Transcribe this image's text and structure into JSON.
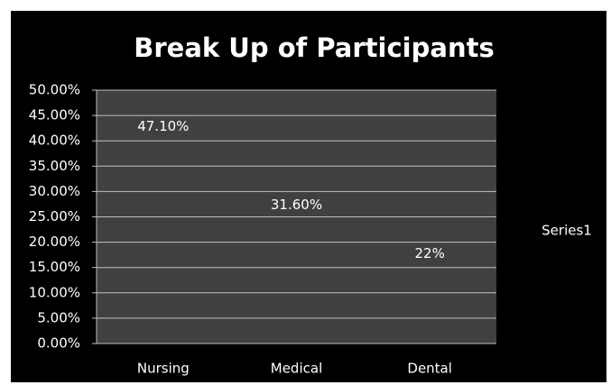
{
  "chart_data": {
    "type": "bar",
    "title": "Break Up of Participants",
    "categories": [
      "Nursing",
      "Medical",
      "Dental"
    ],
    "series": [
      {
        "name": "Series1",
        "color": "#404040",
        "values": [
          47.1,
          31.6,
          22
        ],
        "value_labels": [
          "47.10%",
          "31.60%",
          "22%"
        ]
      }
    ],
    "ylim": [
      0,
      50
    ],
    "yticks": [
      {
        "value": 0,
        "label": "0.00%"
      },
      {
        "value": 5,
        "label": "5.00%"
      },
      {
        "value": 10,
        "label": "10.00%"
      },
      {
        "value": 15,
        "label": "15.00%"
      },
      {
        "value": 20,
        "label": "20.00%"
      },
      {
        "value": 25,
        "label": "25.00%"
      },
      {
        "value": 30,
        "label": "30.00%"
      },
      {
        "value": 35,
        "label": "35.00%"
      },
      {
        "value": 40,
        "label": "40.00%"
      },
      {
        "value": 45,
        "label": "45.00%"
      },
      {
        "value": 50,
        "label": "50.00%"
      }
    ],
    "grid": true,
    "legend": "right"
  }
}
